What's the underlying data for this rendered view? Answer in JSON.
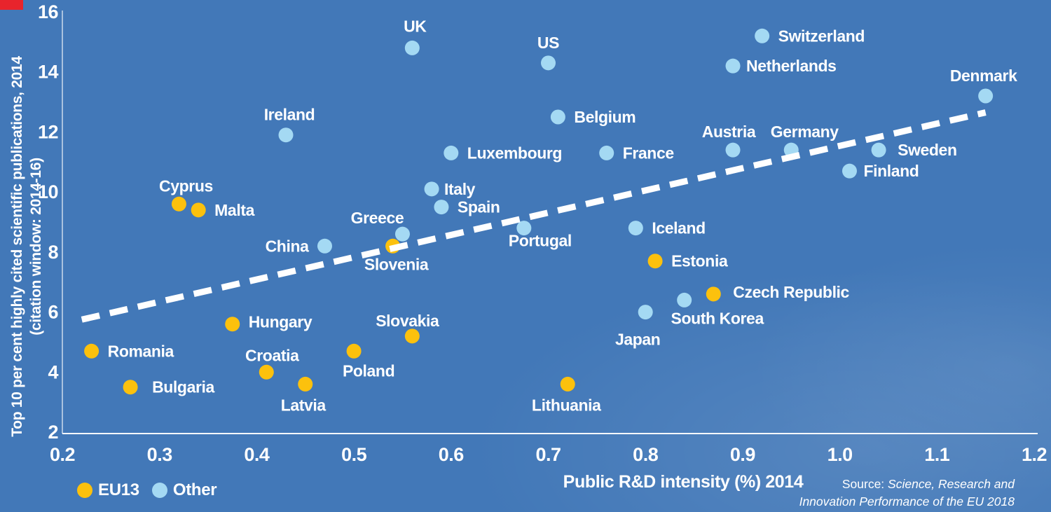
{
  "colors": {
    "background": "#4278b8",
    "eu13": "#fcc10d",
    "other": "#a4d9f3",
    "text": "#ffffff",
    "axis": "#ffffff",
    "trend": "#ffffff",
    "red_mark": "#e8242c"
  },
  "chart_data": {
    "type": "scatter",
    "title": "",
    "xlabel": "Public R&D intensity (%) 2014",
    "ylabel_lines": [
      "Top 10 per cent highly cited scientific publications, 2014",
      "(citation window: 2014-16)"
    ],
    "xlim": [
      0.2,
      1.2
    ],
    "ylim": [
      2,
      16
    ],
    "x_tick_labels": [
      "0.2",
      "0.3",
      "0.4",
      "0.5",
      "0.6",
      "0.7",
      "0.8",
      "0.9",
      "1.0",
      "1.1",
      "1.2"
    ],
    "y_tick_labels": [
      "2",
      "4",
      "6",
      "8",
      "10",
      "12",
      "14",
      "16"
    ],
    "grid": false,
    "legend": {
      "position": "bottom-left",
      "items": [
        {
          "label": "EU13",
          "series": "eu13"
        },
        {
          "label": "Other",
          "series": "other"
        }
      ]
    },
    "trend_line": {
      "style": "dashed",
      "color": "#ffffff",
      "x1": 0.22,
      "y1": 5.75,
      "x2": 1.15,
      "y2": 12.65
    },
    "series": [
      {
        "name": "EU13",
        "color_key": "eu13",
        "points": [
          {
            "label": "Cyprus",
            "x": 0.32,
            "y": 9.6,
            "label_pos": "above",
            "ldx": 10,
            "ldy": 3
          },
          {
            "label": "Malta",
            "x": 0.34,
            "y": 9.4,
            "label_pos": "right"
          },
          {
            "label": "Slovenia",
            "x": 0.54,
            "y": 8.2,
            "label_pos": "below",
            "ldx": 5
          },
          {
            "label": "Estonia",
            "x": 0.81,
            "y": 7.7,
            "label_pos": "right"
          },
          {
            "label": "Czech Republic",
            "x": 0.87,
            "y": 6.6,
            "label_pos": "right",
            "ldx": 5,
            "ldy": -3
          },
          {
            "label": "Hungary",
            "x": 0.375,
            "y": 5.6,
            "label_pos": "right",
            "ldy": -3
          },
          {
            "label": "Slovakia",
            "x": 0.56,
            "y": 5.2,
            "label_pos": "above",
            "ldx": -7,
            "ldy": 7
          },
          {
            "label": "Poland",
            "x": 0.5,
            "y": 4.7,
            "label_pos": "below",
            "ldx": 21,
            "ldy": 2
          },
          {
            "label": "Romania",
            "x": 0.23,
            "y": 4.7,
            "label_pos": "right"
          },
          {
            "label": "Croatia",
            "x": 0.41,
            "y": 4.0,
            "label_pos": "above",
            "ldx": 8,
            "ldy": 5
          },
          {
            "label": "Bulgaria",
            "x": 0.27,
            "y": 3.5,
            "label_pos": "right",
            "ldx": 8
          },
          {
            "label": "Latvia",
            "x": 0.45,
            "y": 3.6,
            "label_pos": "below",
            "ldx": -3,
            "ldy": 4
          },
          {
            "label": "Lithuania",
            "x": 0.72,
            "y": 3.6,
            "label_pos": "below",
            "ldx": -2,
            "ldy": 4
          }
        ]
      },
      {
        "name": "Other",
        "color_key": "other",
        "points": [
          {
            "label": "UK",
            "x": 0.56,
            "y": 14.8,
            "label_pos": "above",
            "ldx": 4,
            "ldy": -2
          },
          {
            "label": "US",
            "x": 0.7,
            "y": 14.3,
            "label_pos": "above"
          },
          {
            "label": "Switzerland",
            "x": 0.92,
            "y": 15.2,
            "label_pos": "right"
          },
          {
            "label": "Netherlands",
            "x": 0.89,
            "y": 14.2,
            "label_pos": "right",
            "ldx": -4
          },
          {
            "label": "Denmark",
            "x": 1.15,
            "y": 13.2,
            "label_pos": "above",
            "ldx": -3
          },
          {
            "label": "Ireland",
            "x": 0.43,
            "y": 11.9,
            "label_pos": "above",
            "ldx": 5
          },
          {
            "label": "Belgium",
            "x": 0.71,
            "y": 12.5,
            "label_pos": "right"
          },
          {
            "label": "Luxembourg",
            "x": 0.6,
            "y": 11.3,
            "label_pos": "right"
          },
          {
            "label": "France",
            "x": 0.76,
            "y": 11.3,
            "label_pos": "right"
          },
          {
            "label": "Austria",
            "x": 0.89,
            "y": 11.4,
            "label_pos": "above",
            "ldx": -6,
            "ldy": 3
          },
          {
            "label": "Germany",
            "x": 0.95,
            "y": 11.4,
            "label_pos": "above",
            "ldx": 19,
            "ldy": 3
          },
          {
            "label": "Sweden",
            "x": 1.04,
            "y": 11.4,
            "label_pos": "right",
            "ldx": 4
          },
          {
            "label": "Finland",
            "x": 1.01,
            "y": 10.7,
            "label_pos": "right",
            "ldx": -3
          },
          {
            "label": "Italy",
            "x": 0.58,
            "y": 10.1,
            "label_pos": "right",
            "ldx": -5
          },
          {
            "label": "Spain",
            "x": 0.59,
            "y": 9.5,
            "label_pos": "right"
          },
          {
            "label": "Greece",
            "x": 0.55,
            "y": 8.6,
            "label_pos": "above",
            "ldx": -36,
            "ldy": 6
          },
          {
            "label": "China",
            "x": 0.47,
            "y": 8.2,
            "label_pos": "left"
          },
          {
            "label": "Portugal",
            "x": 0.675,
            "y": 8.8,
            "label_pos": "below",
            "ldx": 23,
            "ldy": -8
          },
          {
            "label": "Iceland",
            "x": 0.79,
            "y": 8.8,
            "label_pos": "right"
          },
          {
            "label": "South Korea",
            "x": 0.84,
            "y": 6.4,
            "label_pos": "below",
            "ldx": 47
          },
          {
            "label": "Japan",
            "x": 0.8,
            "y": 6.0,
            "label_pos": "below",
            "ldx": -11,
            "ldy": 13
          }
        ]
      }
    ],
    "source_prefix": "Source: ",
    "source_line1_italic": "Science, Research and",
    "source_line2_italic": "Innovation Performance of the EU 2018"
  }
}
